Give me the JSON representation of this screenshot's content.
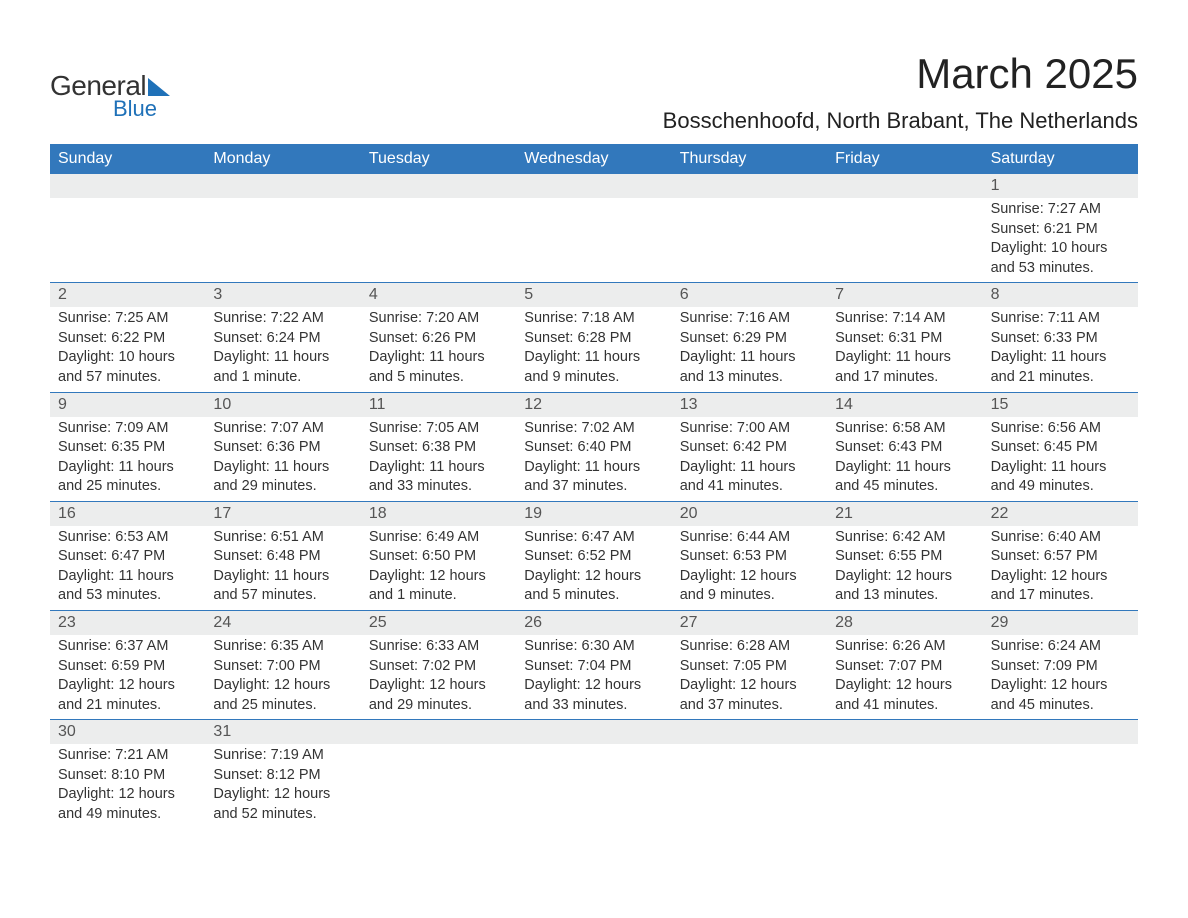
{
  "logo": {
    "general": "General",
    "blue": "Blue"
  },
  "title": "March 2025",
  "location": "Bosschenhoofd, North Brabant, The Netherlands",
  "colors": {
    "header_bg": "#3278bc",
    "header_text": "#ffffff",
    "daynum_bg": "#eceded",
    "text": "#333333",
    "logo_accent": "#1f71b8"
  },
  "weekday_labels": [
    "Sunday",
    "Monday",
    "Tuesday",
    "Wednesday",
    "Thursday",
    "Friday",
    "Saturday"
  ],
  "weeks": [
    [
      {
        "n": "",
        "sr": "",
        "ss": "",
        "dl": ""
      },
      {
        "n": "",
        "sr": "",
        "ss": "",
        "dl": ""
      },
      {
        "n": "",
        "sr": "",
        "ss": "",
        "dl": ""
      },
      {
        "n": "",
        "sr": "",
        "ss": "",
        "dl": ""
      },
      {
        "n": "",
        "sr": "",
        "ss": "",
        "dl": ""
      },
      {
        "n": "",
        "sr": "",
        "ss": "",
        "dl": ""
      },
      {
        "n": "1",
        "sr": "Sunrise: 7:27 AM",
        "ss": "Sunset: 6:21 PM",
        "dl": "Daylight: 10 hours and 53 minutes."
      }
    ],
    [
      {
        "n": "2",
        "sr": "Sunrise: 7:25 AM",
        "ss": "Sunset: 6:22 PM",
        "dl": "Daylight: 10 hours and 57 minutes."
      },
      {
        "n": "3",
        "sr": "Sunrise: 7:22 AM",
        "ss": "Sunset: 6:24 PM",
        "dl": "Daylight: 11 hours and 1 minute."
      },
      {
        "n": "4",
        "sr": "Sunrise: 7:20 AM",
        "ss": "Sunset: 6:26 PM",
        "dl": "Daylight: 11 hours and 5 minutes."
      },
      {
        "n": "5",
        "sr": "Sunrise: 7:18 AM",
        "ss": "Sunset: 6:28 PM",
        "dl": "Daylight: 11 hours and 9 minutes."
      },
      {
        "n": "6",
        "sr": "Sunrise: 7:16 AM",
        "ss": "Sunset: 6:29 PM",
        "dl": "Daylight: 11 hours and 13 minutes."
      },
      {
        "n": "7",
        "sr": "Sunrise: 7:14 AM",
        "ss": "Sunset: 6:31 PM",
        "dl": "Daylight: 11 hours and 17 minutes."
      },
      {
        "n": "8",
        "sr": "Sunrise: 7:11 AM",
        "ss": "Sunset: 6:33 PM",
        "dl": "Daylight: 11 hours and 21 minutes."
      }
    ],
    [
      {
        "n": "9",
        "sr": "Sunrise: 7:09 AM",
        "ss": "Sunset: 6:35 PM",
        "dl": "Daylight: 11 hours and 25 minutes."
      },
      {
        "n": "10",
        "sr": "Sunrise: 7:07 AM",
        "ss": "Sunset: 6:36 PM",
        "dl": "Daylight: 11 hours and 29 minutes."
      },
      {
        "n": "11",
        "sr": "Sunrise: 7:05 AM",
        "ss": "Sunset: 6:38 PM",
        "dl": "Daylight: 11 hours and 33 minutes."
      },
      {
        "n": "12",
        "sr": "Sunrise: 7:02 AM",
        "ss": "Sunset: 6:40 PM",
        "dl": "Daylight: 11 hours and 37 minutes."
      },
      {
        "n": "13",
        "sr": "Sunrise: 7:00 AM",
        "ss": "Sunset: 6:42 PM",
        "dl": "Daylight: 11 hours and 41 minutes."
      },
      {
        "n": "14",
        "sr": "Sunrise: 6:58 AM",
        "ss": "Sunset: 6:43 PM",
        "dl": "Daylight: 11 hours and 45 minutes."
      },
      {
        "n": "15",
        "sr": "Sunrise: 6:56 AM",
        "ss": "Sunset: 6:45 PM",
        "dl": "Daylight: 11 hours and 49 minutes."
      }
    ],
    [
      {
        "n": "16",
        "sr": "Sunrise: 6:53 AM",
        "ss": "Sunset: 6:47 PM",
        "dl": "Daylight: 11 hours and 53 minutes."
      },
      {
        "n": "17",
        "sr": "Sunrise: 6:51 AM",
        "ss": "Sunset: 6:48 PM",
        "dl": "Daylight: 11 hours and 57 minutes."
      },
      {
        "n": "18",
        "sr": "Sunrise: 6:49 AM",
        "ss": "Sunset: 6:50 PM",
        "dl": "Daylight: 12 hours and 1 minute."
      },
      {
        "n": "19",
        "sr": "Sunrise: 6:47 AM",
        "ss": "Sunset: 6:52 PM",
        "dl": "Daylight: 12 hours and 5 minutes."
      },
      {
        "n": "20",
        "sr": "Sunrise: 6:44 AM",
        "ss": "Sunset: 6:53 PM",
        "dl": "Daylight: 12 hours and 9 minutes."
      },
      {
        "n": "21",
        "sr": "Sunrise: 6:42 AM",
        "ss": "Sunset: 6:55 PM",
        "dl": "Daylight: 12 hours and 13 minutes."
      },
      {
        "n": "22",
        "sr": "Sunrise: 6:40 AM",
        "ss": "Sunset: 6:57 PM",
        "dl": "Daylight: 12 hours and 17 minutes."
      }
    ],
    [
      {
        "n": "23",
        "sr": "Sunrise: 6:37 AM",
        "ss": "Sunset: 6:59 PM",
        "dl": "Daylight: 12 hours and 21 minutes."
      },
      {
        "n": "24",
        "sr": "Sunrise: 6:35 AM",
        "ss": "Sunset: 7:00 PM",
        "dl": "Daylight: 12 hours and 25 minutes."
      },
      {
        "n": "25",
        "sr": "Sunrise: 6:33 AM",
        "ss": "Sunset: 7:02 PM",
        "dl": "Daylight: 12 hours and 29 minutes."
      },
      {
        "n": "26",
        "sr": "Sunrise: 6:30 AM",
        "ss": "Sunset: 7:04 PM",
        "dl": "Daylight: 12 hours and 33 minutes."
      },
      {
        "n": "27",
        "sr": "Sunrise: 6:28 AM",
        "ss": "Sunset: 7:05 PM",
        "dl": "Daylight: 12 hours and 37 minutes."
      },
      {
        "n": "28",
        "sr": "Sunrise: 6:26 AM",
        "ss": "Sunset: 7:07 PM",
        "dl": "Daylight: 12 hours and 41 minutes."
      },
      {
        "n": "29",
        "sr": "Sunrise: 6:24 AM",
        "ss": "Sunset: 7:09 PM",
        "dl": "Daylight: 12 hours and 45 minutes."
      }
    ],
    [
      {
        "n": "30",
        "sr": "Sunrise: 7:21 AM",
        "ss": "Sunset: 8:10 PM",
        "dl": "Daylight: 12 hours and 49 minutes."
      },
      {
        "n": "31",
        "sr": "Sunrise: 7:19 AM",
        "ss": "Sunset: 8:12 PM",
        "dl": "Daylight: 12 hours and 52 minutes."
      },
      {
        "n": "",
        "sr": "",
        "ss": "",
        "dl": ""
      },
      {
        "n": "",
        "sr": "",
        "ss": "",
        "dl": ""
      },
      {
        "n": "",
        "sr": "",
        "ss": "",
        "dl": ""
      },
      {
        "n": "",
        "sr": "",
        "ss": "",
        "dl": ""
      },
      {
        "n": "",
        "sr": "",
        "ss": "",
        "dl": ""
      }
    ]
  ]
}
